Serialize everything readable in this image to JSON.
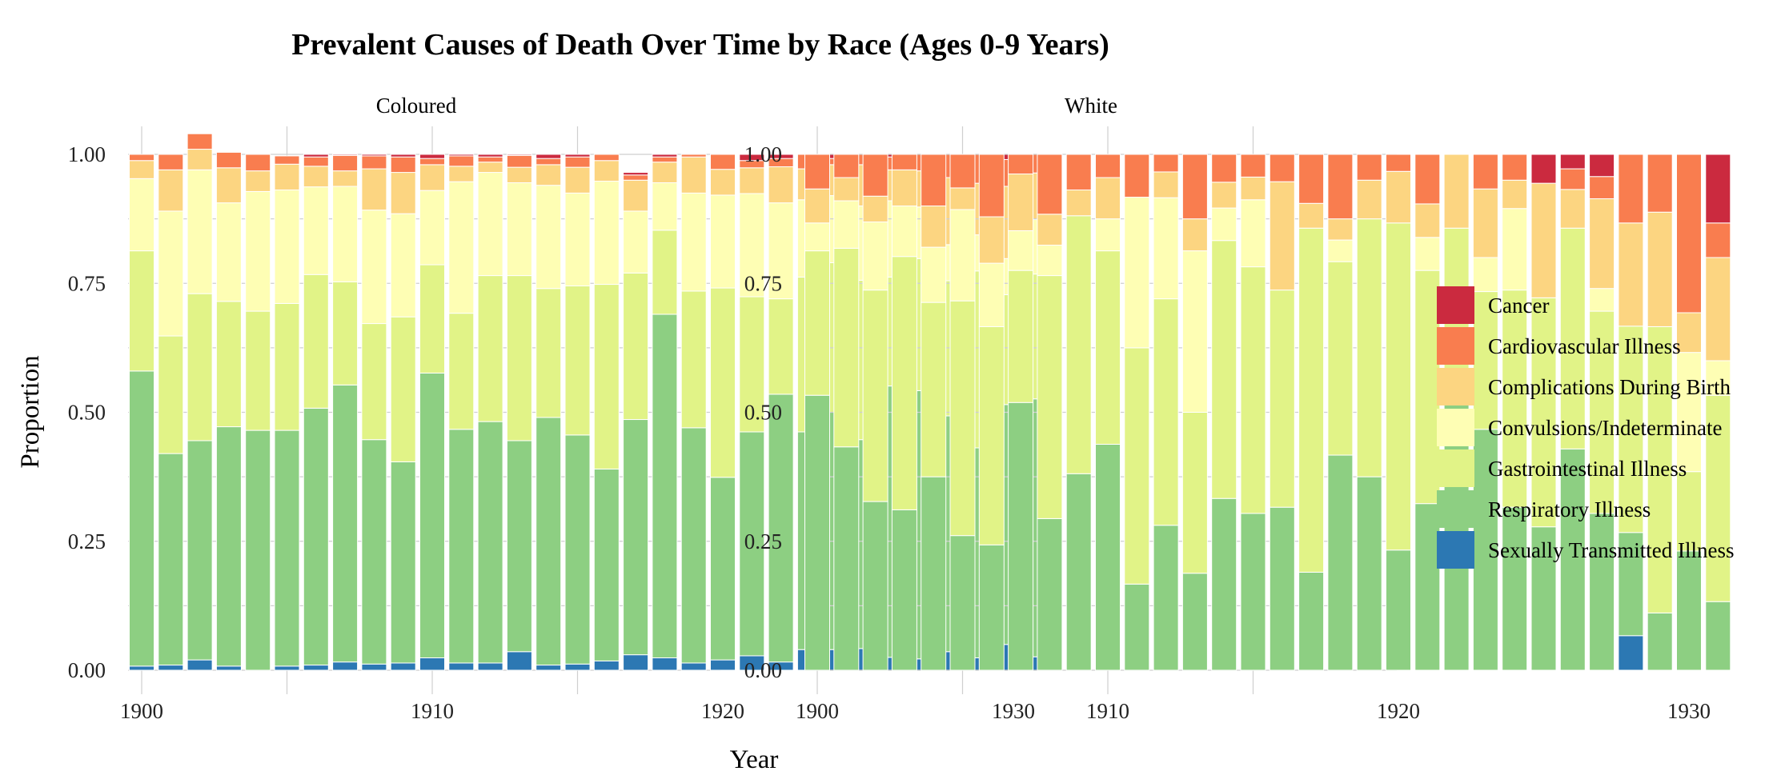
{
  "chart_data": {
    "type": "bar",
    "stacked": true,
    "title": "Prevalent Causes of Death Over Time by Race (Ages 0-9 Years)",
    "xlabel": "Year",
    "ylabel": "Proportion",
    "ylim": [
      0,
      1
    ],
    "y_ticks": [
      0,
      0.25,
      0.5,
      0.75,
      1
    ],
    "y_tick_labels": [
      "0.00",
      "0.25",
      "0.50",
      "0.75",
      "1.00"
    ],
    "x_ticks": [
      1900,
      1910,
      1920,
      1930
    ],
    "x_tick_labels": [
      "1900",
      "1910",
      "1920",
      "1930"
    ],
    "legend_position": "right",
    "grid": true,
    "years": [
      1900,
      1901,
      1902,
      1903,
      1904,
      1905,
      1906,
      1907,
      1908,
      1909,
      1910,
      1911,
      1912,
      1913,
      1914,
      1915,
      1916,
      1917,
      1918,
      1919,
      1920,
      1921,
      1922,
      1923,
      1924,
      1925,
      1926,
      1927,
      1928,
      1929,
      1930,
      1931
    ],
    "categories": [
      {
        "name": "Cancer",
        "color": "#CB2A3F"
      },
      {
        "name": "Cardiovascular Illness",
        "color": "#F97D4F"
      },
      {
        "name": "Complications During Birth",
        "color": "#FCD581"
      },
      {
        "name": "Convulsions/Indeterminate",
        "color": "#FEFEB4"
      },
      {
        "name": "Gastrointestinal Illness",
        "color": "#E1F387"
      },
      {
        "name": "Respiratory Illness",
        "color": "#8DCF82"
      },
      {
        "name": "Sexually Transmitted Illness",
        "color": "#2C78B3"
      }
    ],
    "stack_order_bottom_to_top": [
      "Sexually Transmitted Illness",
      "Respiratory Illness",
      "Gastrointestinal Illness",
      "Convulsions/Indeterminate",
      "Complications During Birth",
      "Cardiovascular Illness",
      "Cancer"
    ],
    "facets": [
      {
        "label": "Coloured",
        "series": [
          {
            "name": "Sexually Transmitted Illness",
            "values": [
              0.008,
              0.01,
              0.02,
              0.008,
              0,
              0.008,
              0.01,
              0.016,
              0.012,
              0.014,
              0.024,
              0.014,
              0.014,
              0.036,
              0.01,
              0.012,
              0.018,
              0.03,
              0.024,
              0.014,
              0.02,
              0.028,
              0.016,
              0.04,
              0.04,
              0.042,
              0.025,
              0.022,
              0.036,
              0.024,
              0.05,
              0.026
            ]
          },
          {
            "name": "Respiratory Illness",
            "values": [
              0.572,
              0.41,
              0.425,
              0.464,
              0.465,
              0.457,
              0.498,
              0.537,
              0.435,
              0.39,
              0.552,
              0.453,
              0.468,
              0.409,
              0.48,
              0.444,
              0.372,
              0.456,
              0.666,
              0.456,
              0.354,
              0.434,
              0.519,
              0.422,
              0.46,
              0.405,
              0.526,
              0.52,
              0.457,
              0.407,
              0.465,
              0.5
            ]
          },
          {
            "name": "Gastrointestinal Illness",
            "values": [
              0.233,
              0.228,
              0.285,
              0.243,
              0.231,
              0.246,
              0.259,
              0.2,
              0.225,
              0.281,
              0.21,
              0.225,
              0.283,
              0.32,
              0.25,
              0.289,
              0.358,
              0.284,
              0.163,
              0.265,
              0.367,
              0.262,
              0.185,
              0.3,
              0.29,
              0.309,
              0.211,
              0.256,
              0.262,
              0.343,
              0.213,
              0.242
            ]
          },
          {
            "name": "Convulsions/Indeterminate",
            "values": [
              0.14,
              0.242,
              0.24,
              0.191,
              0.232,
              0.22,
              0.17,
              0.185,
              0.22,
              0.2,
              0.144,
              0.255,
              0.2,
              0.18,
              0.2,
              0.18,
              0.2,
              0.12,
              0.092,
              0.19,
              0.18,
              0.2,
              0.186,
              0.15,
              0.13,
              0.144,
              0.148,
              0.1,
              0.07,
              0.07,
              0.07,
              0.106
            ]
          },
          {
            "name": "Complications During Birth",
            "values": [
              0.035,
              0.08,
              0.04,
              0.068,
              0.04,
              0.05,
              0.04,
              0.03,
              0.08,
              0.08,
              0.05,
              0.03,
              0.02,
              0.03,
              0.04,
              0.05,
              0.04,
              0.06,
              0.04,
              0.07,
              0.05,
              0.05,
              0.07,
              0.06,
              0.06,
              0.08,
              0.06,
              0.07,
              0.13,
              0.1,
              0.14,
              0.09
            ]
          },
          {
            "name": "Cardiovascular Illness",
            "values": [
              0.012,
              0.03,
              0.03,
              0.03,
              0.032,
              0.016,
              0.018,
              0.03,
              0.025,
              0.03,
              0.012,
              0.02,
              0.01,
              0.023,
              0.012,
              0.02,
              0.012,
              0.01,
              0.01,
              0.005,
              0.029,
              0.014,
              0.016,
              0.028,
              0.012,
              0.02,
              0.025,
              0.032,
              0.045,
              0.056,
              0.052,
              0.036
            ]
          },
          {
            "name": "Cancer",
            "values": [
              0,
              0,
              0,
              0,
              0,
              0,
              0.005,
              0.002,
              0.003,
              0.005,
              0.008,
              0.003,
              0.005,
              0.002,
              0.008,
              0.005,
              0,
              0.005,
              0.005,
              0,
              0,
              0.012,
              0.008,
              0,
              0.008,
              0,
              0.005,
              0,
              0,
              0,
              0.01,
              0
            ]
          }
        ]
      },
      {
        "label": "White",
        "series": [
          {
            "name": "Sexually Transmitted Illness",
            "values": [
              0,
              0,
              0,
              0,
              0,
              0,
              0,
              0,
              0,
              0,
              0,
              0,
              0,
              0,
              0,
              0,
              0,
              0,
              0,
              0,
              0,
              0,
              0,
              0,
              0,
              0,
              0,
              0,
              0.067,
              0,
              0,
              0
            ]
          },
          {
            "name": "Respiratory Illness",
            "values": [
              0.533,
              0.433,
              0.327,
              0.311,
              0.375,
              0.261,
              0.243,
              0.519,
              0.294,
              0.381,
              0.438,
              0.167,
              0.281,
              0.188,
              0.333,
              0.304,
              0.316,
              0.19,
              0.417,
              0.375,
              0.233,
              0.323,
              0.524,
              0.467,
              0.316,
              0.278,
              0.429,
              0.304,
              0.2,
              0.111,
              0.231,
              0.133
            ]
          },
          {
            "name": "Gastrointestinal Illness",
            "values": [
              0.28,
              0.385,
              0.41,
              0.491,
              0.338,
              0.455,
              0.423,
              0.256,
              0.471,
              0.5,
              0.375,
              0.458,
              0.439,
              0.312,
              0.5,
              0.478,
              0.421,
              0.667,
              0.375,
              0.5,
              0.634,
              0.452,
              0.333,
              0.267,
              0.421,
              0.444,
              0.428,
              0.392,
              0.4,
              0.555,
              0.154,
              0.4
            ]
          },
          {
            "name": "Convulsions/Indeterminate",
            "values": [
              0.054,
              0.092,
              0.132,
              0.098,
              0.107,
              0.177,
              0.123,
              0.077,
              0.059,
              0.0,
              0.062,
              0.292,
              0.196,
              0.313,
              0.063,
              0.13,
              0.0,
              0.0,
              0.042,
              0.0,
              0.0,
              0.064,
              0.0,
              0.066,
              0.158,
              0.0,
              0.0,
              0.044,
              0.0,
              0.0,
              0.231,
              0.067
            ]
          },
          {
            "name": "Complications During Birth",
            "values": [
              0.066,
              0.045,
              0.05,
              0.07,
              0.08,
              0.042,
              0.09,
              0.11,
              0.06,
              0.05,
              0.08,
              0.0,
              0.05,
              0.062,
              0.05,
              0.044,
              0.21,
              0.048,
              0.041,
              0.075,
              0.1,
              0.065,
              0.143,
              0.133,
              0.055,
              0.222,
              0.075,
              0.174,
              0.2,
              0.222,
              0.077,
              0.2
            ]
          },
          {
            "name": "Cardiovascular Illness",
            "values": [
              0.067,
              0.045,
              0.081,
              0.03,
              0.1,
              0.065,
              0.121,
              0.038,
              0.116,
              0.069,
              0.045,
              0.083,
              0.034,
              0.125,
              0.054,
              0.044,
              0.053,
              0.095,
              0.125,
              0.05,
              0.033,
              0.096,
              0.0,
              0.067,
              0.05,
              0.0,
              0.04,
              0.043,
              0.133,
              0.112,
              0.307,
              0.067
            ]
          },
          {
            "name": "Cancer",
            "values": [
              0,
              0,
              0,
              0,
              0,
              0,
              0,
              0,
              0,
              0,
              0,
              0,
              0,
              0,
              0,
              0,
              0,
              0,
              0,
              0,
              0,
              0,
              0,
              0,
              0,
              0.056,
              0.028,
              0.043,
              0,
              0,
              0,
              0.133
            ]
          }
        ]
      }
    ]
  }
}
